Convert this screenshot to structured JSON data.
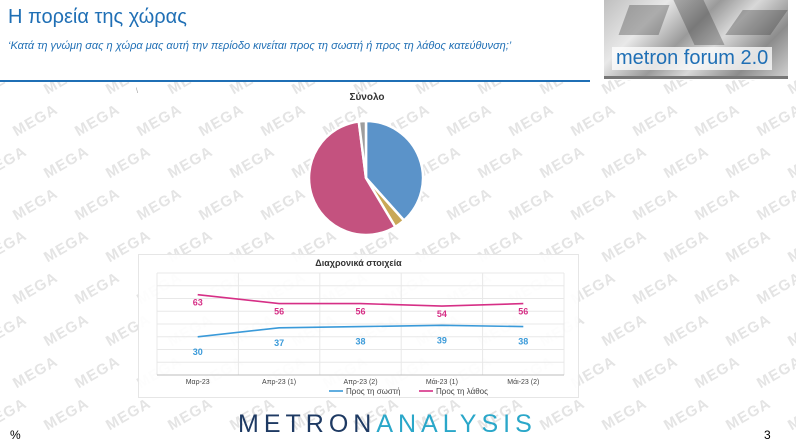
{
  "header": {
    "title": "Η πορεία της χώρας",
    "subtitle": "‘Κατά τη γνώμη σας η χώρα μας αυτή την περίοδο κινείται προς τη σωστή ή προς τη λάθος κατεύθυνση;’"
  },
  "logo": {
    "text": "metron forum 2.0"
  },
  "watermark": {
    "text": "MEGA"
  },
  "marks": {
    "small": "\\"
  },
  "footer": {
    "brand_left": "METRON",
    "brand_right": "ANALYSIS",
    "percent": "%",
    "page": "3"
  },
  "colors": {
    "blue": "#5b93c9",
    "pink": "#c4527f",
    "gold": "#c9a857",
    "gray": "#9e9e9e",
    "accent": "#1f6fb5"
  },
  "chart_data": [
    {
      "type": "pie",
      "title": "Σύνολο",
      "slices": [
        {
          "value": 38,
          "color": "#5b93c9"
        },
        {
          "value": 3,
          "color": "#c9a857"
        },
        {
          "value": 56,
          "color": "#c4527f"
        },
        {
          "value": 2,
          "color": "#9e9e9e"
        }
      ]
    },
    {
      "type": "line",
      "title": "Διαχρονικά στοιχεία",
      "categories": [
        "Μαρ-23",
        "Απρ-23 (1)",
        "Απρ-23 (2)",
        "Μάι-23 (1)",
        "Μάι-23 (2)"
      ],
      "ylim": [
        0,
        80
      ],
      "grid": true,
      "legend": "bottom",
      "series": [
        {
          "name": "Προς τη σωστή",
          "values": [
            30,
            37,
            38,
            39,
            38
          ],
          "color": "#3a9ad9"
        },
        {
          "name": "Προς τη λάθος",
          "values": [
            63,
            56,
            56,
            54,
            56
          ],
          "color": "#d62f86"
        }
      ]
    }
  ]
}
